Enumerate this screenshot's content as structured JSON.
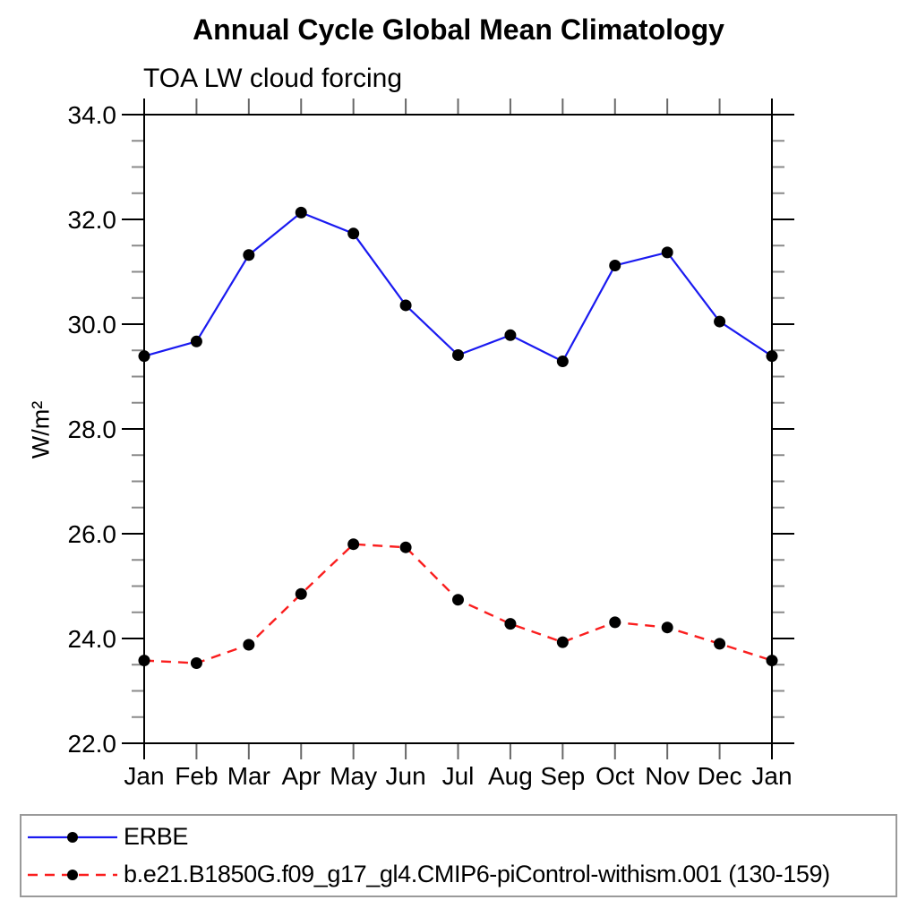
{
  "header": {
    "title": "Annual Cycle Global Mean Climatology",
    "subtitle": "TOA LW cloud forcing"
  },
  "chart_data": {
    "type": "line",
    "title": "Annual Cycle Global Mean Climatology",
    "subtitle": "TOA LW cloud forcing",
    "xlabel": "",
    "ylabel": "W/m²",
    "categories": [
      "Jan",
      "Feb",
      "Mar",
      "Apr",
      "May",
      "Jun",
      "Jul",
      "Aug",
      "Sep",
      "Oct",
      "Nov",
      "Dec",
      "Jan"
    ],
    "ylim": [
      22.0,
      34.0
    ],
    "ytick_major": [
      34,
      32,
      30,
      28,
      26,
      24,
      22
    ],
    "ytick_labels": [
      "34.0",
      "32.0",
      "30.0",
      "28.0",
      "26.0",
      "24.0",
      "22.0"
    ],
    "ytick_minor_step": 0.5,
    "grid": false,
    "legend_position": "bottom",
    "frame_color": "#000000",
    "series": [
      {
        "name": "ERBE",
        "color": "#1a1af0",
        "style": "solid",
        "marker": "circle",
        "marker_color": "#000000",
        "values": [
          29.39,
          29.67,
          31.32,
          32.13,
          31.73,
          30.36,
          29.41,
          29.79,
          29.29,
          31.12,
          31.37,
          30.05,
          29.39
        ]
      },
      {
        "name": "b.e21.B1850G.f09_g17_gl4.CMIP6-piControl-withism.001 (130-159)",
        "color": "#fa1e1e",
        "style": "dashed",
        "marker": "circle",
        "marker_color": "#000000",
        "values": [
          23.58,
          23.53,
          23.88,
          24.85,
          25.8,
          25.74,
          24.74,
          24.28,
          23.93,
          24.31,
          24.21,
          23.9,
          23.58
        ]
      }
    ]
  }
}
